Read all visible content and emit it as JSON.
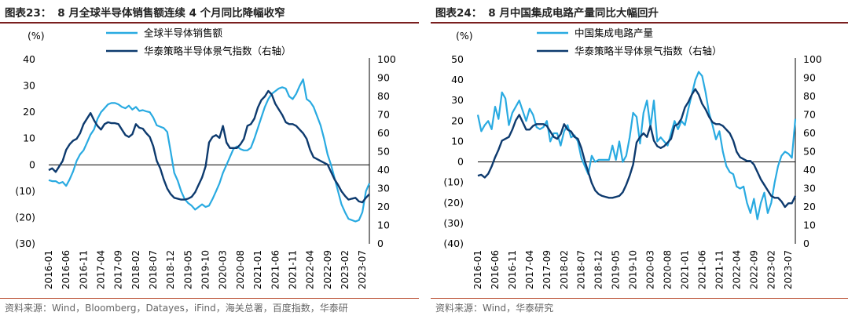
{
  "panels": [
    {
      "figure_label": "图表23：",
      "title": "8 月全球半导体销售额连续 4 个月同比降幅收窄",
      "source": "资料来源：Wind，Bloomberg，Datayes，iFind，海关总署，百度指数，华泰研",
      "colors": {
        "series1": "#29aae1",
        "series2": "#0d3a6e"
      },
      "chart_data": {
        "type": "line",
        "left_unit": "(%)",
        "left_ylim": [
          -30,
          40
        ],
        "left_ticks": [
          "40",
          "30",
          "20",
          "10",
          "0",
          "(10)",
          "(20)",
          "(30)"
        ],
        "right_ylim": [
          0,
          100
        ],
        "right_ticks": [
          "100",
          "90",
          "80",
          "70",
          "60",
          "50",
          "40",
          "30",
          "20",
          "10",
          "0"
        ],
        "x_ticks": [
          "2016-01",
          "2016-06",
          "2016-11",
          "2017-04",
          "2017-09",
          "2018-02",
          "2018-07",
          "2018-12",
          "2019-05",
          "2019-10",
          "2020-03",
          "2020-08",
          "2021-01",
          "2021-06",
          "2021-11",
          "2022-04",
          "2022-09",
          "2023-02",
          "2023-07"
        ],
        "series": [
          {
            "name": "全球半导体销售额",
            "axis": "left",
            "values": [
              -5.8,
              -6.2,
              -6.2,
              -7.0,
              -6.5,
              -8.0,
              -5.5,
              -2.5,
              1.5,
              4.0,
              5.5,
              8.5,
              11.5,
              13.5,
              17.5,
              20.0,
              21.5,
              23.0,
              23.5,
              23.5,
              23.0,
              22.0,
              21.5,
              22.5,
              21.0,
              22.0,
              20.5,
              20.8,
              20.3,
              20.0,
              18.0,
              15.0,
              14.5,
              14.0,
              12.5,
              5.0,
              -3.0,
              -6.0,
              -10.0,
              -13.0,
              -14.5,
              -15.5,
              -17.0,
              -16.0,
              -15.0,
              -16.0,
              -15.5,
              -13.0,
              -10.0,
              -7.0,
              -3.0,
              0.0,
              3.0,
              6.0,
              7.0,
              6.0,
              5.5,
              5.5,
              6.5,
              10.0,
              14.0,
              18.0,
              22.0,
              25.0,
              27.0,
              28.0,
              29.0,
              29.5,
              29.0,
              26.0,
              25.0,
              27.0,
              30.0,
              32.5,
              25.0,
              24.0,
              22.0,
              18.5,
              15.0,
              10.0,
              4.0,
              0.0,
              -5.0,
              -10.0,
              -15.0,
              -18.0,
              -20.5,
              -21.0,
              -21.5,
              -21.0,
              -18.0,
              -10.0,
              -7.0
            ]
          },
          {
            "name": "华泰策略半导体景气指数（右轴）",
            "axis": "right",
            "values": [
              40.0,
              41.0,
              39.0,
              42.0,
              45.0,
              51.0,
              54.0,
              56.0,
              57.0,
              60.0,
              65.0,
              68.0,
              71.0,
              67.0,
              64.0,
              62.0,
              65.0,
              66.0,
              65.5,
              65.5,
              65.0,
              62.0,
              59.0,
              58.0,
              59.5,
              65.0,
              63.0,
              62.5,
              60.0,
              58.0,
              53.0,
              45.0,
              41.0,
              35.0,
              30.0,
              27.0,
              25.0,
              24.5,
              24.0,
              24.0,
              24.5,
              25.5,
              28.0,
              32.0,
              36.0,
              42.0,
              55.0,
              58.0,
              59.0,
              57.5,
              64.0,
              55.0,
              52.0,
              52.0,
              52.0,
              54.0,
              57.0,
              64.0,
              65.0,
              68.0,
              74.0,
              78.0,
              80.0,
              83.0,
              81.0,
              76.0,
              73.0,
              70.0,
              66.0,
              65.0,
              65.0,
              64.0,
              62.0,
              60.0,
              57.0,
              51.0,
              47.0,
              46.0,
              45.0,
              44.0,
              43.0,
              39.0,
              35.0,
              32.0,
              28.5,
              26.0,
              24.0,
              24.5,
              25.0,
              23.0,
              22.5,
              25.0,
              27.0
            ]
          }
        ]
      }
    },
    {
      "figure_label": "图表24：",
      "title": "8 月中国集成电路产量同比大幅回升",
      "source": "资料来源：Wind，华泰研究",
      "colors": {
        "series1": "#29aae1",
        "series2": "#0d3a6e"
      },
      "chart_data": {
        "type": "line",
        "left_unit": "(%)",
        "left_ylim": [
          -40,
          50
        ],
        "left_ticks": [
          "50",
          "40",
          "30",
          "20",
          "10",
          "0",
          "(10)",
          "(20)",
          "(30)",
          "(40)"
        ],
        "right_ylim": [
          0,
          100
        ],
        "right_ticks": [
          "100",
          "90",
          "80",
          "70",
          "60",
          "50",
          "40",
          "30",
          "20",
          "10",
          "0"
        ],
        "x_ticks": [
          "2016-01",
          "2016-06",
          "2016-11",
          "2017-04",
          "2017-09",
          "2018-02",
          "2018-07",
          "2018-12",
          "2019-05",
          "2019-10",
          "2020-03",
          "2020-08",
          "2021-01",
          "2021-06",
          "2021-11",
          "2022-04",
          "2022-09",
          "2023-02",
          "2023-07"
        ],
        "series": [
          {
            "name": "中国集成电路产量",
            "axis": "left",
            "values": [
              23.0,
              15.0,
              18.0,
              20.0,
              16.0,
              27.0,
              21.0,
              34.0,
              31.0,
              18.0,
              24.0,
              27.0,
              30.0,
              25.0,
              20.0,
              26.0,
              23.0,
              17.0,
              16.0,
              17.0,
              20.0,
              10.0,
              14.0,
              14.0,
              8.0,
              15.0,
              18.0,
              12.0,
              13.0,
              10.0,
              2.0,
              -2.0,
              -6.0,
              3.0,
              0.0,
              1.0,
              1.0,
              1.0,
              1.0,
              8.0,
              1.0,
              10.0,
              0.0,
              3.0,
              12.0,
              24.0,
              22.0,
              9.0,
              24.0,
              30.0,
              17.0,
              30.0,
              10.0,
              12.0,
              10.0,
              8.0,
              14.0,
              20.0,
              16.0,
              20.0,
              18.0,
              26.0,
              33.0,
              40.0,
              44.0,
              42.0,
              34.0,
              24.0,
              18.0,
              11.0,
              15.0,
              5.0,
              -2.0,
              -5.0,
              -6.0,
              -12.0,
              -13.0,
              -12.0,
              -20.0,
              -25.0,
              -18.0,
              -28.0,
              -20.0,
              -15.0,
              -25.0,
              -20.0,
              -10.0,
              -2.0,
              3.0,
              5.0,
              4.0,
              2.0,
              21.0
            ]
          },
          {
            "name": "华泰策略半导体景气指数（右轴）",
            "axis": "right",
            "values": [
              37.0,
              37.5,
              36.0,
              38.0,
              42.0,
              47.0,
              51.0,
              56.0,
              57.0,
              58.0,
              62.0,
              67.0,
              70.0,
              66.0,
              62.0,
              62.0,
              64.0,
              65.0,
              65.0,
              65.0,
              64.0,
              61.0,
              58.0,
              57.0,
              59.5,
              65.0,
              62.0,
              61.0,
              58.0,
              57.0,
              52.0,
              45.0,
              39.0,
              33.0,
              29.0,
              27.0,
              26.0,
              25.5,
              25.0,
              25.0,
              25.5,
              26.0,
              28.0,
              32.0,
              37.0,
              43.0,
              55.0,
              58.0,
              60.0,
              58.0,
              64.0,
              56.0,
              53.0,
              52.0,
              53.0,
              55.0,
              57.0,
              64.0,
              65.0,
              68.0,
              74.0,
              77.0,
              81.0,
              84.0,
              81.0,
              76.0,
              73.0,
              69.0,
              66.0,
              65.0,
              65.0,
              64.0,
              62.0,
              60.0,
              56.0,
              50.0,
              47.0,
              46.0,
              45.0,
              45.0,
              43.0,
              39.0,
              35.0,
              32.0,
              29.0,
              26.0,
              25.0,
              25.0,
              23.0,
              20.0,
              22.0,
              22.0,
              26.0
            ]
          }
        ]
      }
    }
  ]
}
